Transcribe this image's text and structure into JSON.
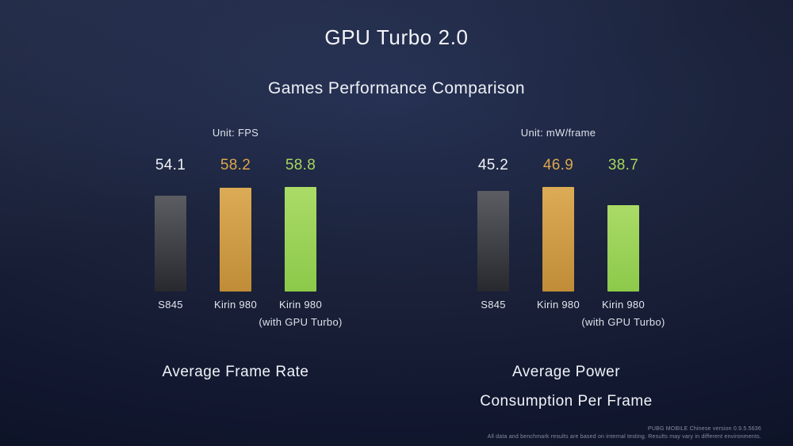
{
  "title": "GPU Turbo 2.0",
  "subtitle": "Games Performance Comparison",
  "palette": {
    "background": "#161c30",
    "value_label_colors": [
      "#eef1f5",
      "#dda74c",
      "#a6d75c"
    ],
    "bar_colors": [
      [
        "#5c5d63",
        "#28292f"
      ],
      [
        "#dcab55",
        "#c08c37"
      ],
      [
        "#aadb67",
        "#8cc94a"
      ]
    ]
  },
  "chart_data": [
    {
      "type": "bar",
      "title": "Average Frame Rate",
      "unit_label": "Unit: FPS",
      "categories": [
        "S845",
        "Kirin 980",
        "Kirin 980"
      ],
      "bar_sublabels": [
        "",
        "",
        "(with GPU Turbo)"
      ],
      "values": [
        54.1,
        58.2,
        58.8
      ],
      "series_colors": [
        "gray",
        "orange",
        "green"
      ],
      "ylim": [
        0,
        60
      ],
      "legend": "none",
      "grid": false
    },
    {
      "type": "bar",
      "title": "Average Power Consumption Per Frame",
      "title_lines": [
        "Average Power",
        "Consumption Per Frame"
      ],
      "unit_label": "Unit: mW/frame",
      "categories": [
        "S845",
        "Kirin 980",
        "Kirin 980"
      ],
      "bar_sublabels": [
        "",
        "",
        "(with GPU Turbo)"
      ],
      "values": [
        45.2,
        46.9,
        38.7
      ],
      "series_colors": [
        "gray",
        "orange",
        "green"
      ],
      "ylim": [
        0,
        50
      ],
      "legend": "none",
      "grid": false
    }
  ],
  "footer": {
    "line1": "PUBG MOBILE Chinese version 0.9.5.5636",
    "line2": "All data and benchmark results are based on internal testing. Results may vary in different environments."
  }
}
